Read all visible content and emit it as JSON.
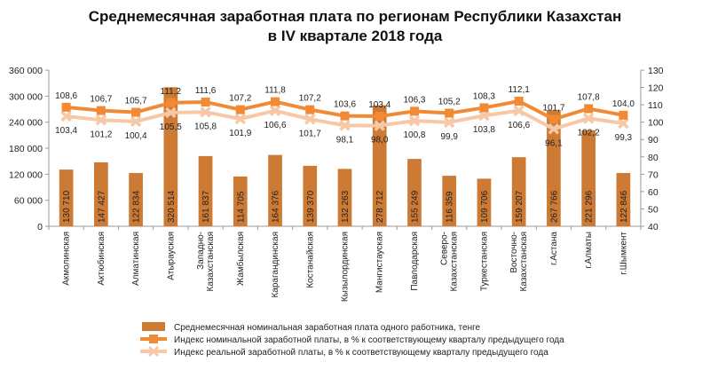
{
  "chart_data": {
    "type": "bar",
    "title": [
      "Среднемесячная заработная плата по регионам Республики Казахстан",
      "в IV квартале 2018 года"
    ],
    "categories": [
      [
        "Акмолинская"
      ],
      [
        "Актюбинская"
      ],
      [
        "Алматинская"
      ],
      [
        "Атырауская"
      ],
      [
        "Западно-",
        "Казахстанская"
      ],
      [
        "Жамбылская"
      ],
      [
        "Карагандинская"
      ],
      [
        "Костанайская"
      ],
      [
        "Кызылординская"
      ],
      [
        "Мангистауская"
      ],
      [
        "Павлодарская"
      ],
      [
        "Северо-",
        "Казахстанская"
      ],
      [
        "Туркестанская"
      ],
      [
        "Восточно-",
        "Казахстанская"
      ],
      [
        "г.Астана"
      ],
      [
        "г.Алматы"
      ],
      [
        "г.Шымкент"
      ]
    ],
    "bar_labels": [
      "130 710",
      "147 427",
      "122 834",
      "320 514",
      "161 837",
      "114 705",
      "164 376",
      "139 370",
      "132 263",
      "278 712",
      "155 249",
      "116 359",
      "109 706",
      "159 207",
      "267 766",
      "221 296",
      "122 846"
    ],
    "bar_values": [
      130710,
      147427,
      122834,
      320514,
      161837,
      114705,
      164376,
      139370,
      132263,
      278712,
      155249,
      116359,
      109706,
      159207,
      267766,
      221296,
      122846
    ],
    "nominal_labels": [
      "108,6",
      "106,7",
      "105,7",
      "111,2",
      "111,6",
      "107,2",
      "111,8",
      "107,2",
      "103,6",
      "103,4",
      "106,3",
      "105,2",
      "108,3",
      "112,1",
      "101,7",
      "107,8",
      "104,0"
    ],
    "nominal_values": [
      108.6,
      106.7,
      105.7,
      111.2,
      111.6,
      107.2,
      111.8,
      107.2,
      103.6,
      103.4,
      106.3,
      105.2,
      108.3,
      112.1,
      101.7,
      107.8,
      104.0
    ],
    "real_labels": [
      "103,4",
      "101,2",
      "100,4",
      "105,5",
      "105,8",
      "101,9",
      "106,6",
      "101,7",
      "98,1",
      "98,0",
      "100,8",
      "99,9",
      "103,8",
      "106,6",
      "96,1",
      "102,2",
      "99,3"
    ],
    "real_values": [
      103.4,
      101.2,
      100.4,
      105.5,
      105.8,
      101.9,
      106.6,
      101.7,
      98.1,
      98.0,
      100.8,
      99.9,
      103.8,
      106.6,
      96.1,
      102.2,
      99.3
    ],
    "y_left_ticks": [
      "0",
      "60 000",
      "120 000",
      "180 000",
      "240 000",
      "300 000",
      "360 000"
    ],
    "y_left_range": [
      0,
      360000
    ],
    "y_right_ticks": [
      "40",
      "50",
      "60",
      "70",
      "80",
      "90",
      "100",
      "110",
      "120",
      "130"
    ],
    "y_right_range": [
      40,
      130
    ],
    "legend": [
      "Среднемесячная номинальная  заработная плата одного работника, тенге",
      "Индекс номинальной заработной платы, в % к соответствующему кварталу предыдущего года",
      "Индекс реальной заработной платы, в % к соответствующему кварталу предыдущего года"
    ],
    "colors": {
      "bar": "#cd7a35",
      "nominal": "#f28a35",
      "real": "#f7c7a6",
      "axis": "#9a9a9a"
    }
  }
}
